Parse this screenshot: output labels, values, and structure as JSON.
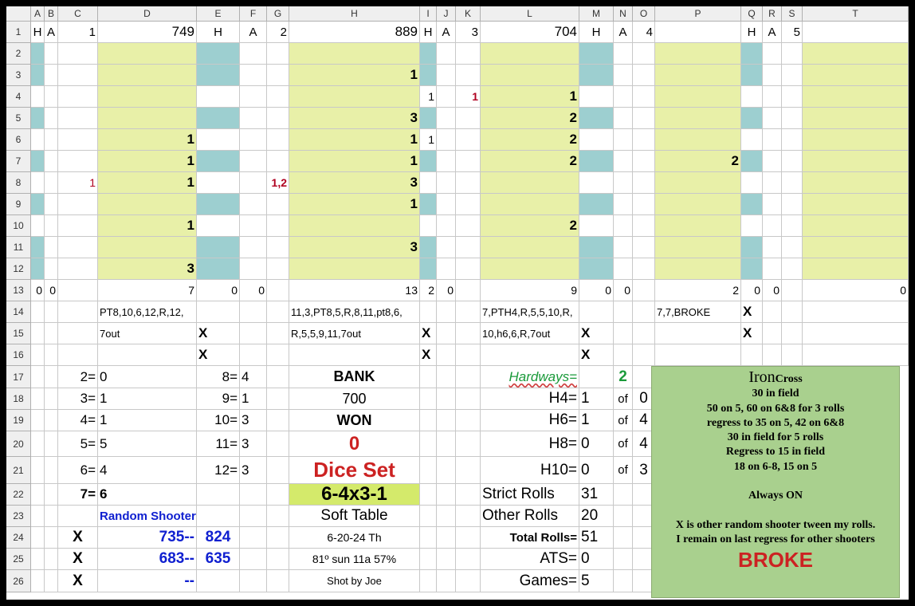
{
  "columns": [
    "A",
    "B",
    "C",
    "D",
    "E",
    "F",
    "G",
    "H",
    "I",
    "J",
    "K",
    "L",
    "M",
    "N",
    "O",
    "P",
    "Q",
    "R",
    "S",
    "T"
  ],
  "rows": [
    "1",
    "2",
    "3",
    "4",
    "5",
    "6",
    "7",
    "8",
    "9",
    "10",
    "11",
    "12",
    "13",
    "14",
    "15",
    "16",
    "17",
    "18",
    "19",
    "20",
    "21",
    "22",
    "23",
    "24",
    "25",
    "26"
  ],
  "colors": {
    "teal": "#9dcfd0",
    "yellow": "#e8f0a8",
    "green_box": "#a9d08e",
    "red": "#cc2222",
    "blue": "#1020d0",
    "green_text": "#1a9a3a"
  },
  "row1": {
    "a": "H",
    "b": "A",
    "c": "1",
    "d": "749",
    "e": "H",
    "f": "A",
    "g": "2",
    "h": "889",
    "i": "H",
    "j": "A",
    "k": "3",
    "l": "704",
    "m": "H",
    "n": "A",
    "o": "4",
    "q": "H",
    "r": "A",
    "s": "5"
  },
  "grid": {
    "d6": "1",
    "d7": "1",
    "d8": "1",
    "d10": "1",
    "d12": "3",
    "c8": "1",
    "g8": "1,2",
    "h3": "1",
    "h5": "3",
    "h6": "1",
    "h7": "1",
    "h8": "3",
    "h9": "1",
    "h11": "3",
    "i4": "1",
    "i6": "1",
    "k4": "1",
    "l4": "1",
    "l5": "2",
    "l6": "2",
    "l7": "2",
    "l10": "2",
    "p7": "2"
  },
  "row13": {
    "a": "0",
    "b": "0",
    "d": "7",
    "e": "0",
    "f": "0",
    "h": "13",
    "i": "2",
    "j": "0",
    "l": "9",
    "m": "0",
    "n": "0",
    "p": "2",
    "q": "0",
    "r": "0",
    "t": "0"
  },
  "rolls": {
    "d14": "PT8,10,6,12,R,12,",
    "d15": "7out",
    "h14": "11,3,PT8,5,R,8,11,pt8,6,",
    "h15": "R,5,5,9,11,7out",
    "l14": "7,PTH4,R,5,5,10,R,",
    "l15": "10,h6,6,R,7out",
    "p14": "7,7,BROKE"
  },
  "marks": {
    "q14": "X",
    "e15": "X",
    "i15": "X",
    "m15": "X",
    "q15": "X",
    "e16": "X",
    "i16": "X",
    "m16": "X"
  },
  "counts": [
    {
      "l": "2=",
      "v": "0",
      "l2": "8=",
      "v2": "4"
    },
    {
      "l": "3=",
      "v": "1",
      "l2": "9=",
      "v2": "1"
    },
    {
      "l": "4=",
      "v": "1",
      "l2": "10=",
      "v2": "3"
    },
    {
      "l": "5=",
      "v": "5",
      "l2": "11=",
      "v2": "3"
    },
    {
      "l": "6=",
      "v": "4",
      "l2": "12=",
      "v2": "3"
    },
    {
      "l": "7=",
      "v": "6"
    }
  ],
  "center": {
    "bank_label": "BANK",
    "bank": "700",
    "won_label": "WON",
    "won": "0",
    "dice_set_label": "Dice Set",
    "dice_set": "6-4x3-1",
    "table": "Soft Table",
    "date": "6-20-24 Th",
    "weather": "81º sun 11a 57%",
    "shot_by": "Shot by Joe"
  },
  "hardways": {
    "label": "Hardways=",
    "count": "2",
    "rows": [
      {
        "l": "H4=",
        "v": "1",
        "of": "of",
        "t": "0"
      },
      {
        "l": "H6=",
        "v": "1",
        "of": "of",
        "t": "4"
      },
      {
        "l": "H8=",
        "v": "0",
        "of": "of",
        "t": "4"
      },
      {
        "l": "H10=",
        "v": "0",
        "of": "of",
        "t": "3"
      }
    ]
  },
  "stats": {
    "strict_label": "Strict Rolls",
    "strict": "31",
    "other_label": "Other Rolls",
    "other": "20",
    "total_label": "Total Rolls=",
    "total": "51",
    "ats_label": "ATS=",
    "ats": "0",
    "games_label": "Games=",
    "games": "5"
  },
  "random": {
    "label": "Random Shooter",
    "rows": [
      {
        "x": "X",
        "a": "735--",
        "b": "824"
      },
      {
        "x": "X",
        "a": "683--",
        "b": "635"
      },
      {
        "x": "X",
        "a": "--",
        "b": ""
      }
    ]
  },
  "iron": {
    "title_big": "Iron",
    "title_small": "Cross",
    "lines": [
      "30 in field",
      "50 on 5, 60 on 6&8 for 3 rolls",
      "regress to 35 on 5, 42 on 6&8",
      "30 in field for 5 rolls",
      "Regress to 15 in field",
      "18 on 6-8, 15 on 5",
      "",
      "Always ON",
      "",
      "X is other random shooter tween my rolls.",
      "I remain on last regress for other shooters"
    ],
    "status": "BROKE"
  }
}
